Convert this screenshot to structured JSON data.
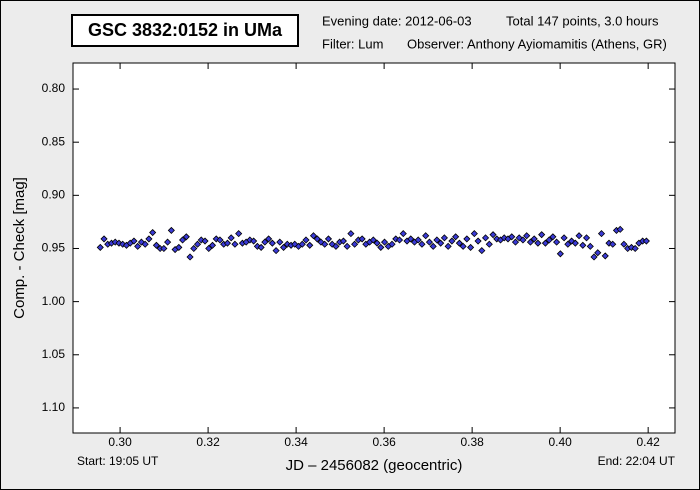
{
  "chart_data": {
    "type": "scatter",
    "title": "GSC 3832:0152 in UMa",
    "info": [
      "Evening date: 2012-06-03",
      "Total 147 points, 3.0 hours",
      "Filter: Lum",
      "Observer: Anthony Ayiomamitis (Athens, GR)"
    ],
    "x_label": "JD – 2456082  (geocentric)",
    "y_label": "Comp. - Check [mag]",
    "start_label": "Start: 19:05 UT",
    "end_label": "End: 22:04 UT",
    "xlim": [
      0.2893,
      0.4261
    ],
    "ylim": [
      0.7755,
      1.1236
    ],
    "y_inverted": true,
    "xticks": [
      {
        "value": 0.3,
        "label": "0.30"
      },
      0.32,
      0.34,
      0.36,
      0.38,
      {
        "value": 0.4,
        "label": "0.40"
      },
      0.42
    ],
    "yticks": [
      {
        "value": 0.8,
        "label": "0.80"
      },
      0.85,
      {
        "value": 0.9,
        "label": "0.90"
      },
      0.95,
      {
        "value": 1.0,
        "label": "1.00"
      },
      1.05,
      {
        "value": 1.1,
        "label": "1.10"
      }
    ],
    "series": [
      {
        "color": "#3a3ad6",
        "x": [
          0.2955,
          0.29635,
          0.2972,
          0.29805,
          0.2989,
          0.29975,
          0.3006,
          0.30145,
          0.3023,
          0.30315,
          0.304,
          0.30485,
          0.3057,
          0.30655,
          0.3074,
          0.30825,
          0.3091,
          0.30995,
          0.3108,
          0.31165,
          0.3125,
          0.31335,
          0.3142,
          0.31505,
          0.3159,
          0.31675,
          0.3176,
          0.31845,
          0.3193,
          0.32015,
          0.321,
          0.32185,
          0.3227,
          0.32355,
          0.3244,
          0.32525,
          0.3261,
          0.32695,
          0.3278,
          0.32865,
          0.3295,
          0.33035,
          0.3312,
          0.33205,
          0.3329,
          0.33375,
          0.3346,
          0.33545,
          0.3363,
          0.33715,
          0.338,
          0.33885,
          0.3397,
          0.34055,
          0.3414,
          0.34225,
          0.3431,
          0.34395,
          0.3448,
          0.34565,
          0.3465,
          0.34735,
          0.3482,
          0.34905,
          0.3499,
          0.35075,
          0.3516,
          0.35245,
          0.3533,
          0.35415,
          0.355,
          0.35585,
          0.3567,
          0.35755,
          0.3584,
          0.35925,
          0.3601,
          0.36095,
          0.3618,
          0.36265,
          0.3635,
          0.36435,
          0.3652,
          0.36605,
          0.3669,
          0.36775,
          0.3686,
          0.36945,
          0.3703,
          0.37115,
          0.372,
          0.37285,
          0.3737,
          0.37455,
          0.3754,
          0.37625,
          0.3771,
          0.37795,
          0.3788,
          0.37965,
          0.3805,
          0.38135,
          0.3822,
          0.38305,
          0.3839,
          0.38475,
          0.3856,
          0.38645,
          0.3873,
          0.38815,
          0.389,
          0.38985,
          0.3907,
          0.39155,
          0.3924,
          0.39325,
          0.3941,
          0.39495,
          0.3958,
          0.39665,
          0.3975,
          0.39835,
          0.3992,
          0.40005,
          0.4009,
          0.40175,
          0.4026,
          0.40345,
          0.4043,
          0.40515,
          0.406,
          0.40685,
          0.4077,
          0.40855,
          0.4094,
          0.41025,
          0.4111,
          0.41195,
          0.4128,
          0.41365,
          0.4145,
          0.41535,
          0.4162,
          0.41705,
          0.4179,
          0.41875,
          0.4196
        ],
        "values": [
          0.949,
          0.941,
          0.946,
          0.945,
          0.944,
          0.945,
          0.946,
          0.947,
          0.945,
          0.943,
          0.948,
          0.944,
          0.946,
          0.941,
          0.935,
          0.947,
          0.95,
          0.95,
          0.944,
          0.933,
          0.951,
          0.949,
          0.942,
          0.939,
          0.958,
          0.95,
          0.946,
          0.942,
          0.943,
          0.95,
          0.947,
          0.941,
          0.942,
          0.946,
          0.945,
          0.94,
          0.946,
          0.936,
          0.945,
          0.944,
          0.942,
          0.943,
          0.948,
          0.949,
          0.944,
          0.941,
          0.945,
          0.952,
          0.944,
          0.949,
          0.946,
          0.947,
          0.946,
          0.948,
          0.946,
          0.942,
          0.947,
          0.938,
          0.941,
          0.944,
          0.946,
          0.941,
          0.946,
          0.948,
          0.944,
          0.943,
          0.948,
          0.936,
          0.946,
          0.942,
          0.941,
          0.946,
          0.944,
          0.942,
          0.945,
          0.949,
          0.944,
          0.948,
          0.946,
          0.941,
          0.942,
          0.936,
          0.943,
          0.941,
          0.944,
          0.942,
          0.946,
          0.938,
          0.944,
          0.948,
          0.942,
          0.945,
          0.94,
          0.948,
          0.943,
          0.939,
          0.945,
          0.948,
          0.941,
          0.949,
          0.936,
          0.943,
          0.952,
          0.94,
          0.946,
          0.937,
          0.941,
          0.942,
          0.94,
          0.941,
          0.939,
          0.944,
          0.94,
          0.942,
          0.938,
          0.944,
          0.941,
          0.945,
          0.937,
          0.945,
          0.942,
          0.939,
          0.944,
          0.955,
          0.94,
          0.946,
          0.943,
          0.945,
          0.938,
          0.947,
          0.94,
          0.948,
          0.958,
          0.954,
          0.936,
          0.957,
          0.945,
          0.946,
          0.933,
          0.932,
          0.946,
          0.95,
          0.949,
          0.95,
          0.945,
          0.943,
          0.943
        ]
      }
    ]
  }
}
